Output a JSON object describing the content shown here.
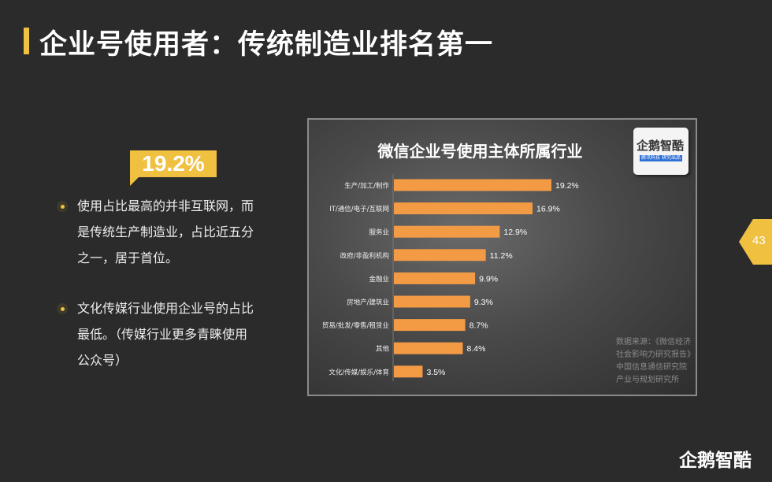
{
  "header": {
    "title": "企业号使用者：传统制造业排名第一"
  },
  "callout": {
    "value": "19.2%"
  },
  "bullets": [
    {
      "lines": [
        "使用占比最高的并非互联网，而",
        "是传统生产制造业，占比近五分",
        "之一，居于首位。"
      ]
    },
    {
      "lines": [
        "文化传媒行业使用企业号的占比",
        "最低。（传媒行业更多青睐使用",
        "公众号）"
      ]
    }
  ],
  "chart_panel": {
    "logo": {
      "name": "企鹅智酷",
      "sub": "腾讯科技 研究出品"
    },
    "source": [
      "数据来源：《微信经济",
      "社会影响力研究报告》",
      "中国信息通信研究院",
      "产业与规划研究所"
    ]
  },
  "chart_data": {
    "type": "bar",
    "orientation": "horizontal",
    "title": "微信企业号使用主体所属行业",
    "categories": [
      "生产/加工/制作",
      "IT/通信/电子/互联网",
      "服务业",
      "政府/非盈利机构",
      "金融业",
      "房地产/建筑业",
      "贸易/批发/零售/租赁业",
      "其他",
      "文化/传媒/娱乐/体育"
    ],
    "values": [
      19.2,
      16.9,
      12.9,
      11.2,
      9.9,
      9.3,
      8.7,
      8.4,
      3.5
    ],
    "labels": [
      "19.2%",
      "16.9%",
      "12.9%",
      "11.2%",
      "9.9%",
      "9.3%",
      "8.7%",
      "8.4%",
      "3.5%"
    ],
    "unit": "%",
    "bar_color": "#f39a45",
    "grid": false
  },
  "page": {
    "number": "43"
  },
  "footer": {
    "brand": "企鹅智酷"
  },
  "colors": {
    "accent": "#f0c040",
    "background": "#2b2b2b",
    "bar": "#f39a45"
  }
}
